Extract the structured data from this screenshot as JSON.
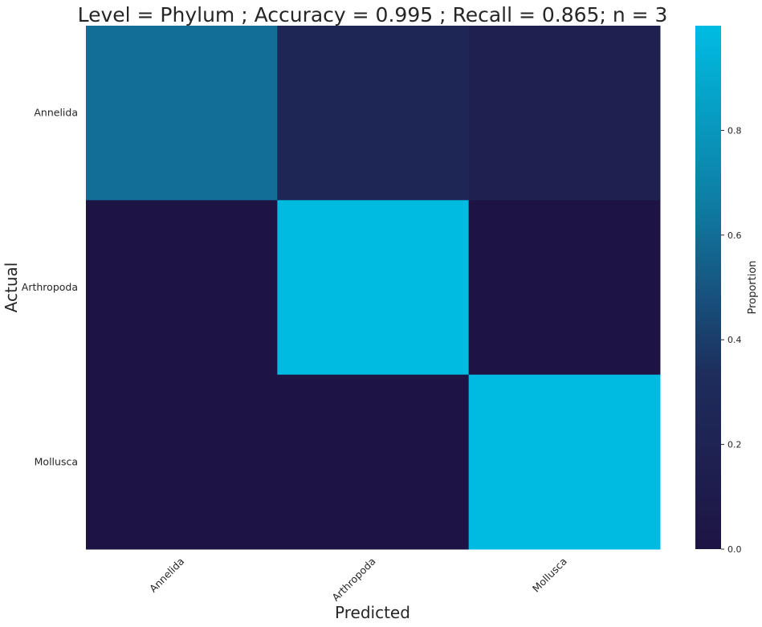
{
  "chart_data": {
    "type": "heatmap",
    "title": "Level = Phylum ; Accuracy = 0.995 ; Recall = 0.865; n = 3",
    "xlabel": "Predicted",
    "ylabel": "Actual",
    "x_categories": [
      "Annelida",
      "Arthropoda",
      "Mollusca"
    ],
    "y_categories": [
      "Annelida",
      "Arthropoda",
      "Mollusca"
    ],
    "values": [
      [
        0.6,
        0.24,
        0.16
      ],
      [
        0.0,
        0.995,
        0.005
      ],
      [
        0.0,
        0.0,
        0.995
      ]
    ],
    "colorbar": {
      "label": "Proportion",
      "range": [
        0,
        1
      ],
      "ticks": [
        "0.0",
        "0.2",
        "0.4",
        "0.6",
        "0.8"
      ],
      "tick_values": [
        0,
        0.2,
        0.4,
        0.6,
        0.8
      ],
      "colors": [
        "#1e1444",
        "#1e2d5c",
        "#0e7ea5",
        "#00bce2"
      ]
    },
    "grid": false,
    "legend": "colorbar-right"
  }
}
